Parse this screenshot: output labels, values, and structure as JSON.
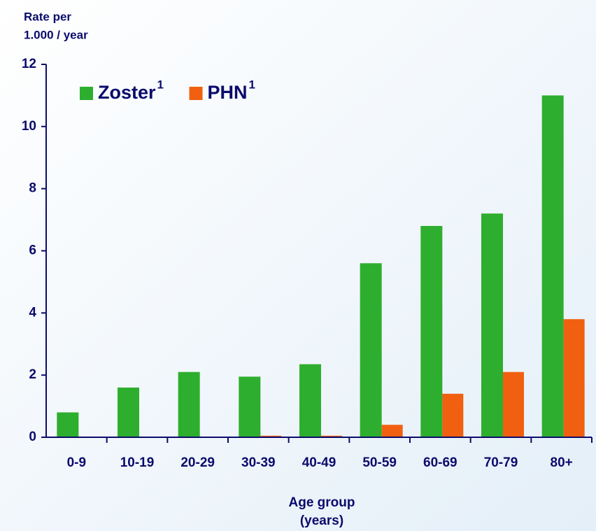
{
  "chart_data": {
    "type": "bar",
    "ylabel": [
      "Rate per",
      "1.000 / year"
    ],
    "xlabel": [
      "Age group",
      "(years)"
    ],
    "categories": [
      "0-9",
      "10-19",
      "20-29",
      "30-39",
      "40-49",
      "50-59",
      "60-69",
      "70-79",
      "80+"
    ],
    "series": [
      {
        "name": "Zoster",
        "superscript": "1",
        "color": "#2eae2e",
        "values": [
          0.8,
          1.6,
          2.1,
          1.95,
          2.35,
          5.6,
          6.8,
          7.2,
          11.0
        ]
      },
      {
        "name": "PHN",
        "superscript": "1",
        "color": "#f06010",
        "values": [
          0,
          0,
          0,
          0.05,
          0.05,
          0.4,
          1.4,
          2.1,
          3.8
        ]
      }
    ],
    "ylim": [
      0,
      12
    ],
    "yticks": [
      0,
      2,
      4,
      6,
      8,
      10,
      12
    ],
    "legend": "upper left"
  }
}
